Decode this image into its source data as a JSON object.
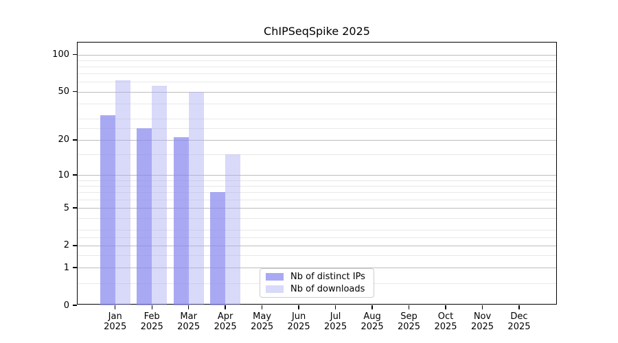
{
  "chart_data": {
    "type": "bar",
    "title": "ChIPSeqSpike 2025",
    "categories": [
      "Jan",
      "Feb",
      "Mar",
      "Apr",
      "May",
      "Jun",
      "Jul",
      "Aug",
      "Sep",
      "Oct",
      "Nov",
      "Dec"
    ],
    "category_year": "2025",
    "series": [
      {
        "name": "Nb of distinct IPs",
        "color": "rgba(136,136,238,0.72)",
        "values": [
          32,
          25,
          21,
          7,
          null,
          null,
          null,
          null,
          null,
          null,
          null,
          null
        ]
      },
      {
        "name": "Nb of downloads",
        "color": "rgba(170,170,244,0.45)",
        "values": [
          62,
          56,
          50,
          15,
          null,
          null,
          null,
          null,
          null,
          null,
          null,
          null
        ]
      }
    ],
    "yscale": "log1p",
    "ylim": [
      0,
      125
    ],
    "yticks": [
      0,
      1,
      2,
      5,
      10,
      20,
      50,
      100
    ],
    "minor_gridlines": [
      0.5,
      1.5,
      2.5,
      3,
      4,
      6,
      7,
      8,
      9,
      15,
      25,
      30,
      40,
      60,
      70,
      80,
      90
    ],
    "grid": true,
    "xlabel": "",
    "ylabel": "",
    "legend_position": "lower center"
  },
  "colors": {
    "major_grid": "#bcbcbc",
    "minor_grid": "#e8e8e8",
    "axis": "#000000",
    "background": "#ffffff"
  }
}
